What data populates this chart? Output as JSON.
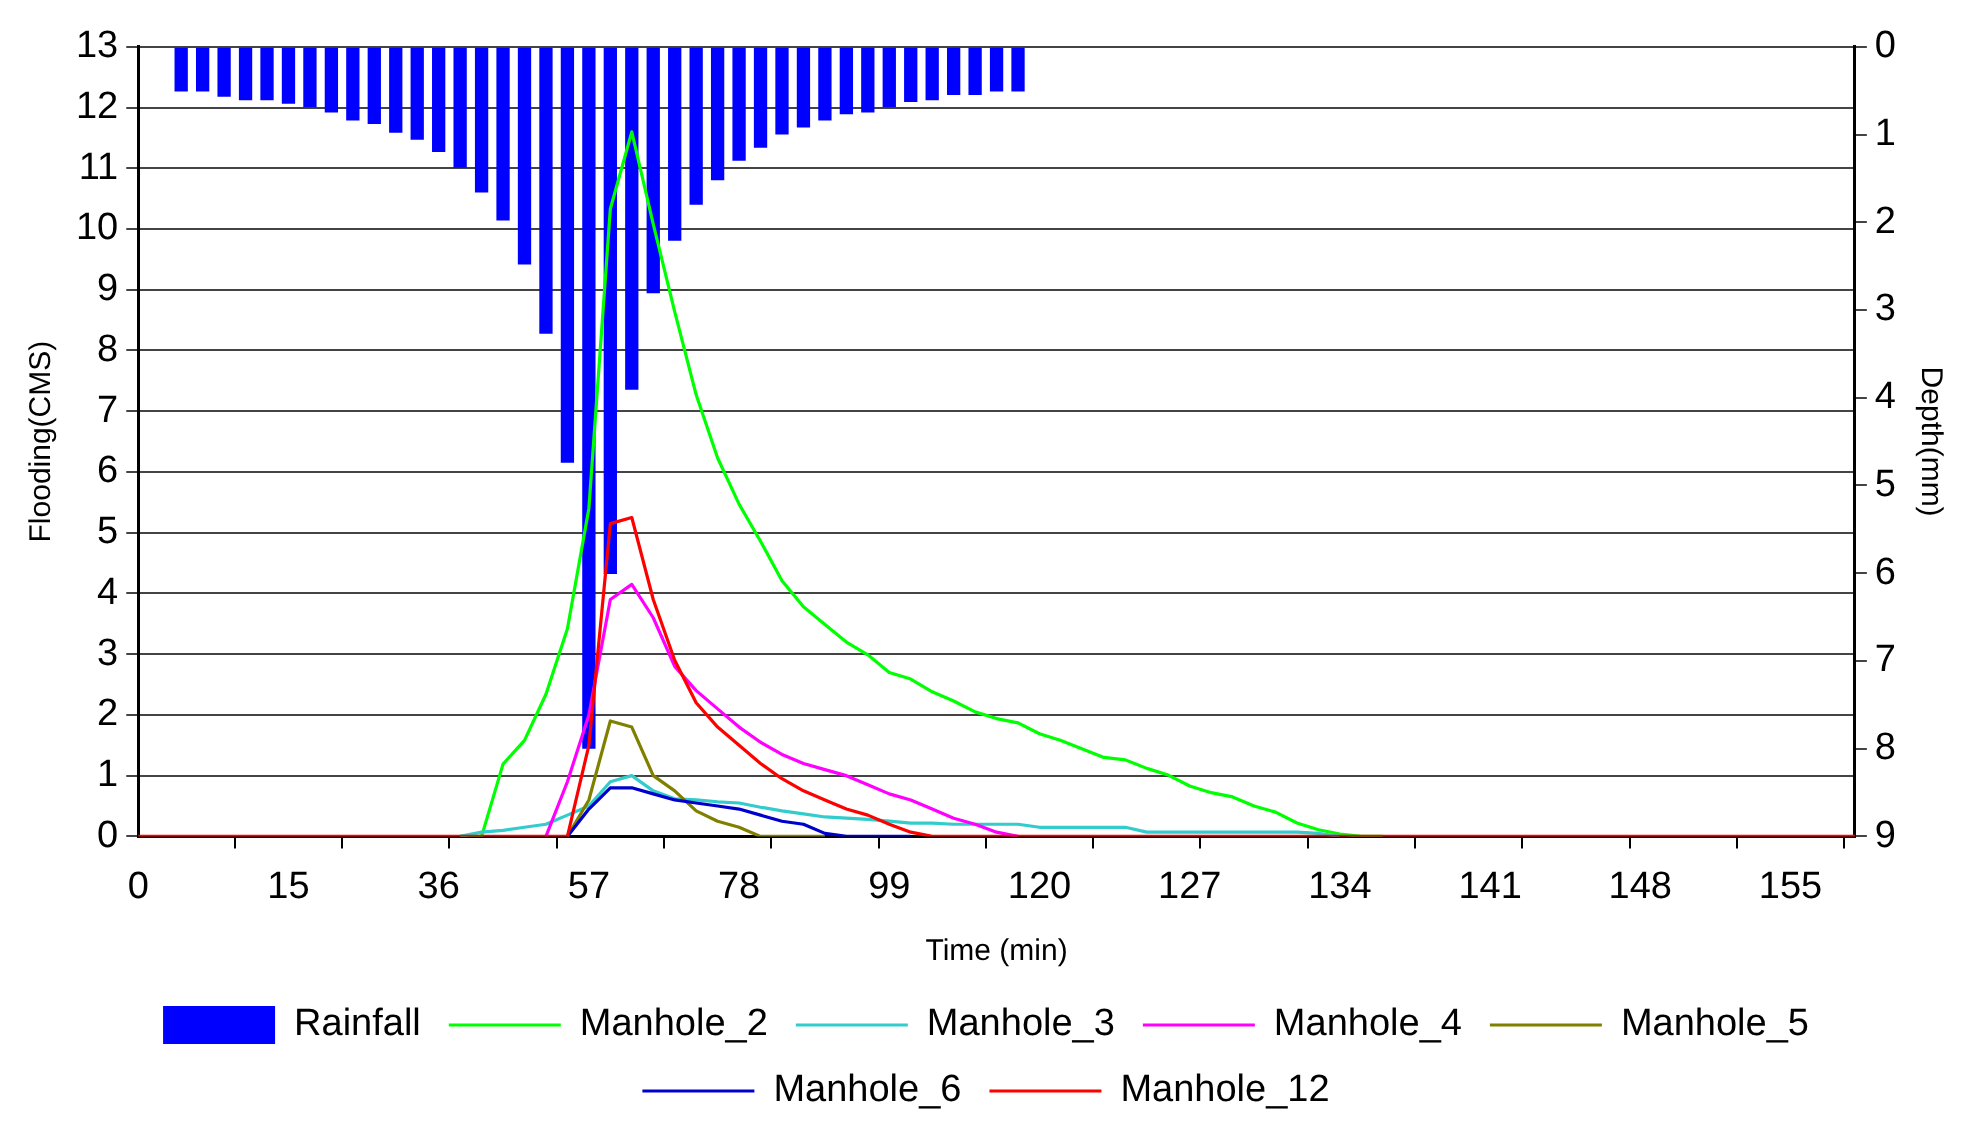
{
  "chart_data": {
    "type": "line",
    "xlabel": "Time (min)",
    "ylabel": "Flooding(CMS)",
    "y2label": "Depth(mm)",
    "categories": [
      "0",
      null,
      null,
      null,
      null,
      null,
      null,
      "15",
      null,
      null,
      null,
      null,
      null,
      null,
      "36",
      null,
      null,
      null,
      null,
      null,
      null,
      "57",
      null,
      null,
      null,
      null,
      null,
      null,
      "78",
      null,
      null,
      null,
      null,
      null,
      null,
      "99",
      null,
      null,
      null,
      null,
      null,
      null,
      "120",
      null,
      null,
      null,
      null,
      null,
      null,
      "127",
      null,
      null,
      null,
      null,
      null,
      null,
      "134",
      null,
      null,
      null,
      null,
      null,
      null,
      "141",
      null,
      null,
      null,
      null,
      null,
      null,
      "148",
      null,
      null,
      null,
      null,
      null,
      null,
      "155",
      null,
      null,
      null
    ],
    "series": [
      {
        "name": "Rainfall",
        "type": "bar",
        "axis": "y2",
        "color": "#0000ff",
        "values": [
          null,
          null,
          0.51,
          0.51,
          0.57,
          0.61,
          0.61,
          0.65,
          0.69,
          0.75,
          0.84,
          0.88,
          0.98,
          1.06,
          1.2,
          1.38,
          1.66,
          1.98,
          2.48,
          3.27,
          4.74,
          8.0,
          6.01,
          3.91,
          2.81,
          2.21,
          1.8,
          1.52,
          1.3,
          1.15,
          1.0,
          0.92,
          0.84,
          0.77,
          0.75,
          0.69,
          0.63,
          0.61,
          0.55,
          0.55,
          0.51,
          0.51,
          null,
          null,
          null,
          null,
          null,
          null,
          null,
          null,
          null,
          null,
          null,
          null,
          null,
          null,
          null,
          null,
          null,
          null,
          null,
          null,
          null,
          null,
          null,
          null,
          null,
          null,
          null,
          null,
          null,
          null,
          null,
          null,
          null,
          null,
          null,
          null,
          null,
          null,
          null
        ]
      },
      {
        "name": "Manhole_2",
        "color": "#00ff00",
        "values": [
          null,
          null,
          null,
          null,
          null,
          null,
          null,
          null,
          null,
          null,
          null,
          null,
          null,
          null,
          null,
          0,
          0,
          1.19,
          1.58,
          2.34,
          3.42,
          5.4,
          10.33,
          11.6,
          10.08,
          8.64,
          7.27,
          6.23,
          5.47,
          4.86,
          4.21,
          3.78,
          3.49,
          3.2,
          2.99,
          2.7,
          2.59,
          2.38,
          2.23,
          2.05,
          1.94,
          1.87,
          1.69,
          1.58,
          1.44,
          1.3,
          1.26,
          1.12,
          1.01,
          0.83,
          0.72,
          0.65,
          0.5,
          0.4,
          0.22,
          0.11,
          0.04,
          0,
          0,
          null,
          null,
          null,
          null,
          null,
          null,
          null,
          null,
          null,
          null,
          null,
          null,
          null,
          null,
          null,
          null,
          null,
          null,
          null,
          null,
          null,
          null
        ]
      },
      {
        "name": "Manhole_3",
        "color": "#33cccc",
        "values": [
          null,
          null,
          null,
          null,
          null,
          null,
          null,
          null,
          null,
          null,
          null,
          null,
          null,
          null,
          null,
          0,
          0.07,
          0.1,
          0.15,
          0.2,
          0.35,
          0.5,
          0.9,
          1.0,
          0.75,
          0.62,
          0.6,
          0.57,
          0.55,
          0.48,
          0.42,
          0.37,
          0.32,
          0.3,
          0.28,
          0.25,
          0.22,
          0.22,
          0.2,
          0.2,
          0.2,
          0.2,
          0.15,
          0.15,
          0.15,
          0.15,
          0.15,
          0.07,
          0.07,
          0.07,
          0.07,
          0.07,
          0.07,
          0.07,
          0.07,
          0.05,
          0,
          null,
          null,
          null,
          null,
          null,
          null,
          null,
          null,
          null,
          null,
          null,
          null,
          null,
          null,
          null,
          null,
          null,
          null,
          null,
          null,
          null,
          null,
          null,
          null
        ]
      },
      {
        "name": "Manhole_4",
        "color": "#ff00ff",
        "values": [
          null,
          null,
          null,
          null,
          null,
          null,
          null,
          null,
          null,
          null,
          null,
          null,
          null,
          null,
          null,
          null,
          null,
          null,
          null,
          0,
          0.9,
          2.0,
          3.9,
          4.15,
          3.6,
          2.8,
          2.4,
          2.1,
          1.8,
          1.55,
          1.35,
          1.2,
          1.1,
          1.0,
          0.85,
          0.7,
          0.6,
          0.45,
          0.3,
          0.2,
          0.07,
          0,
          null,
          null,
          null,
          null,
          null,
          null,
          null,
          null,
          null,
          null,
          null,
          null,
          null,
          null,
          null,
          null,
          null,
          null,
          null,
          null,
          null,
          null,
          null,
          null,
          null,
          null,
          null,
          null,
          null,
          null,
          null,
          null,
          null,
          null,
          null,
          null,
          null,
          null,
          null
        ]
      },
      {
        "name": "Manhole_5",
        "color": "#808000",
        "values": [
          null,
          null,
          null,
          null,
          null,
          null,
          null,
          null,
          null,
          null,
          null,
          null,
          null,
          null,
          null,
          null,
          null,
          null,
          null,
          null,
          0,
          0.6,
          1.9,
          1.8,
          1.0,
          0.75,
          0.42,
          0.25,
          0.15,
          0,
          0,
          0,
          0,
          null,
          null,
          null,
          null,
          null,
          null,
          null,
          null,
          null,
          null,
          null,
          null,
          null,
          null,
          null,
          null,
          null,
          null,
          null,
          null,
          null,
          null,
          null,
          null,
          null,
          null,
          null,
          null,
          null,
          null,
          null,
          null,
          null,
          null,
          null,
          null,
          null,
          null,
          null,
          null,
          null,
          null,
          null,
          null,
          null,
          null,
          null,
          null
        ]
      },
      {
        "name": "Manhole_6",
        "color": "#0000cc",
        "values": [
          null,
          null,
          null,
          null,
          null,
          null,
          null,
          null,
          null,
          null,
          null,
          null,
          null,
          null,
          null,
          null,
          null,
          null,
          null,
          null,
          0,
          0.45,
          0.8,
          0.8,
          0.7,
          0.6,
          0.55,
          0.5,
          0.45,
          0.35,
          0.25,
          0.2,
          0.05,
          0,
          0,
          0,
          0,
          null,
          null,
          null,
          null,
          null,
          null,
          null,
          null,
          null,
          null,
          null,
          null,
          null,
          null,
          null,
          null,
          null,
          null,
          null,
          null,
          null,
          null,
          null,
          null,
          null,
          null,
          null,
          null,
          null,
          null,
          null,
          null,
          null,
          null,
          null,
          null,
          null,
          null,
          null,
          null,
          null,
          null,
          null,
          null
        ]
      },
      {
        "name": "Manhole_12",
        "color": "#ff0000",
        "values": [
          0,
          0,
          0,
          0,
          0,
          0,
          0,
          0,
          0,
          0,
          0,
          0,
          0,
          0,
          0,
          0,
          0,
          0,
          0,
          0,
          0,
          1.5,
          5.15,
          5.25,
          3.9,
          2.9,
          2.2,
          1.8,
          1.5,
          1.2,
          0.95,
          0.75,
          0.6,
          0.45,
          0.35,
          0.2,
          0.07,
          0,
          0,
          0,
          0,
          0,
          0,
          0,
          0,
          0,
          0,
          0,
          0,
          0,
          0,
          0,
          0,
          0,
          0,
          0,
          0,
          0,
          0,
          0,
          0,
          0,
          0,
          0,
          0,
          0,
          0,
          0,
          0,
          0,
          0,
          0,
          0,
          0,
          0,
          0,
          0,
          0,
          0,
          0,
          0
        ]
      }
    ],
    "ylim": [
      0,
      13
    ],
    "yticks": [
      0,
      1,
      2,
      3,
      4,
      5,
      6,
      7,
      8,
      9,
      10,
      11,
      12,
      13
    ],
    "y2lim": [
      9,
      0
    ],
    "y2ticks": [
      0,
      1,
      2,
      3,
      4,
      5,
      6,
      7,
      8,
      9
    ],
    "grid": "y",
    "legend": "bottom",
    "marker": "none",
    "line_style": "solid"
  }
}
